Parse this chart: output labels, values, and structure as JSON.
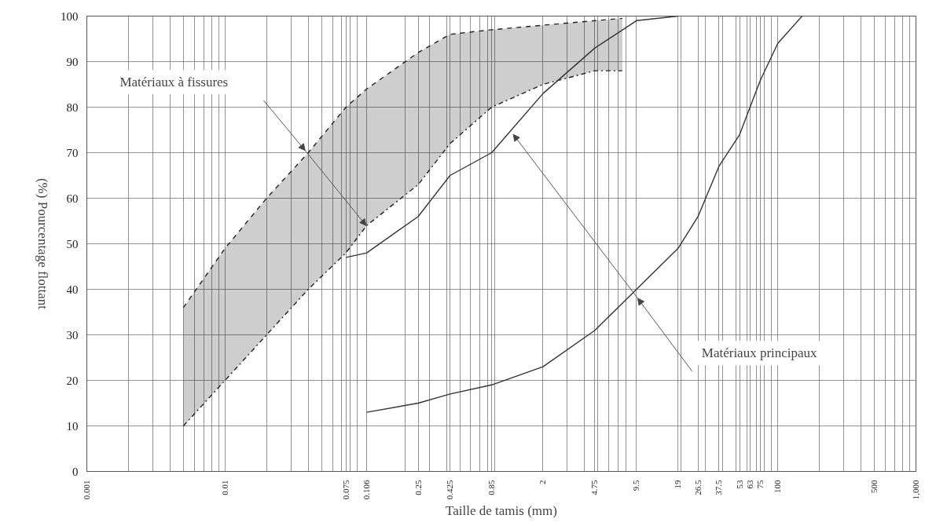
{
  "chart_data": {
    "type": "line",
    "xlabel": "Taille de tamis (mm)",
    "ylabel": "(%) Pourcentage flottant",
    "log": "x",
    "xlim": [
      0.001,
      1000
    ],
    "ylim": [
      0,
      100
    ],
    "yticks": [
      0,
      10,
      20,
      30,
      40,
      50,
      60,
      70,
      80,
      90,
      100
    ],
    "xticks": [
      0.001,
      {
        "value": 0.002,
        "label": null
      },
      {
        "value": 0.003,
        "label": null
      },
      {
        "value": 0.004,
        "label": null
      },
      {
        "value": 0.005,
        "label": null
      },
      {
        "value": 0.006,
        "label": null
      },
      {
        "value": 0.007,
        "label": null
      },
      {
        "value": 0.008,
        "label": null
      },
      {
        "value": 0.009,
        "label": null
      },
      0.01,
      {
        "value": 0.02,
        "label": null
      },
      {
        "value": 0.03,
        "label": null
      },
      {
        "value": 0.04,
        "label": null
      },
      {
        "value": 0.05,
        "label": null
      },
      {
        "value": 0.06,
        "label": null
      },
      {
        "value": 0.07,
        "label": null
      },
      0.075,
      {
        "value": 0.08,
        "label": null
      },
      {
        "value": 0.09,
        "label": null
      },
      0.106,
      {
        "value": 0.2,
        "label": null
      },
      0.25,
      {
        "value": 0.3,
        "label": null
      },
      {
        "value": 0.4,
        "label": null
      },
      0.425,
      {
        "value": 0.5,
        "label": null
      },
      {
        "value": 0.6,
        "label": null
      },
      {
        "value": 0.7,
        "label": null
      },
      {
        "value": 0.8,
        "label": null
      },
      0.85,
      {
        "value": 0.9,
        "label": null
      },
      2,
      {
        "value": 3,
        "label": null
      },
      {
        "value": 4,
        "label": null
      },
      4.75,
      {
        "value": 5,
        "label": null
      },
      {
        "value": 6,
        "label": null
      },
      {
        "value": 7,
        "label": null
      },
      {
        "value": 8,
        "label": null
      },
      9.5,
      19,
      {
        "value": 20,
        "label": null
      },
      26.5,
      {
        "value": 30,
        "label": null
      },
      37.5,
      {
        "value": 40,
        "label": null
      },
      {
        "value": 50,
        "label": null
      },
      53,
      {
        "value": 60,
        "label": null
      },
      63,
      {
        "value": 70,
        "label": null
      },
      75,
      {
        "value": 80,
        "label": null
      },
      {
        "value": 90,
        "label": null
      },
      100,
      {
        "value": 200,
        "label": null
      },
      {
        "value": 300,
        "label": null
      },
      {
        "value": 400,
        "label": null
      },
      500,
      {
        "value": 600,
        "label": null
      },
      {
        "value": 700,
        "label": null
      },
      {
        "value": 800,
        "label": null
      },
      {
        "value": 900,
        "label": null
      },
      {
        "value": 1000,
        "label": "1,000"
      }
    ],
    "grid": true,
    "series": [
      {
        "color": "#222222",
        "line_style": "dashed",
        "x": [
          0.005,
          0.01,
          0.02,
          0.04,
          0.075,
          0.106,
          0.25,
          0.425,
          0.85,
          2,
          4.75,
          7.5
        ],
        "values": [
          36,
          49,
          60,
          70,
          80,
          84,
          92,
          96,
          97,
          98,
          99,
          99.5
        ],
        "lower": [
          10,
          20,
          30,
          40,
          48,
          54,
          63,
          72,
          80,
          85,
          88,
          88
        ],
        "upper": [
          36,
          49,
          60,
          70,
          80,
          84,
          92,
          96,
          97,
          98,
          99,
          99.5
        ]
      },
      {
        "color": "#222222",
        "line_style": "dotted",
        "x": [
          0.005,
          0.01,
          0.02,
          0.04,
          0.075,
          0.106,
          0.25,
          0.425,
          0.85,
          2,
          4.75,
          7.5
        ],
        "values": [
          10,
          20,
          30,
          40,
          48,
          54,
          63,
          72,
          80,
          85,
          88,
          88
        ]
      },
      {
        "color": "#333333",
        "line_style": "solid",
        "x": [
          0.075,
          0.106,
          0.25,
          0.425,
          0.85,
          2,
          4.75,
          9.5,
          19
        ],
        "values": [
          47,
          48,
          56,
          65,
          70,
          83,
          93,
          99,
          100
        ]
      },
      {
        "color": "#333333",
        "line_style": "solid",
        "x": [
          0.106,
          0.25,
          0.425,
          0.85,
          2,
          4.75,
          9.5,
          19,
          26.5,
          37.5,
          53,
          63,
          75,
          100,
          150
        ],
        "values": [
          13,
          15,
          17,
          19,
          23,
          31,
          40,
          49,
          56,
          67,
          74,
          80,
          86,
          94,
          100
        ]
      }
    ],
    "annotations": [
      "Matériaux à fissures",
      "Matériaux principaux"
    ]
  }
}
